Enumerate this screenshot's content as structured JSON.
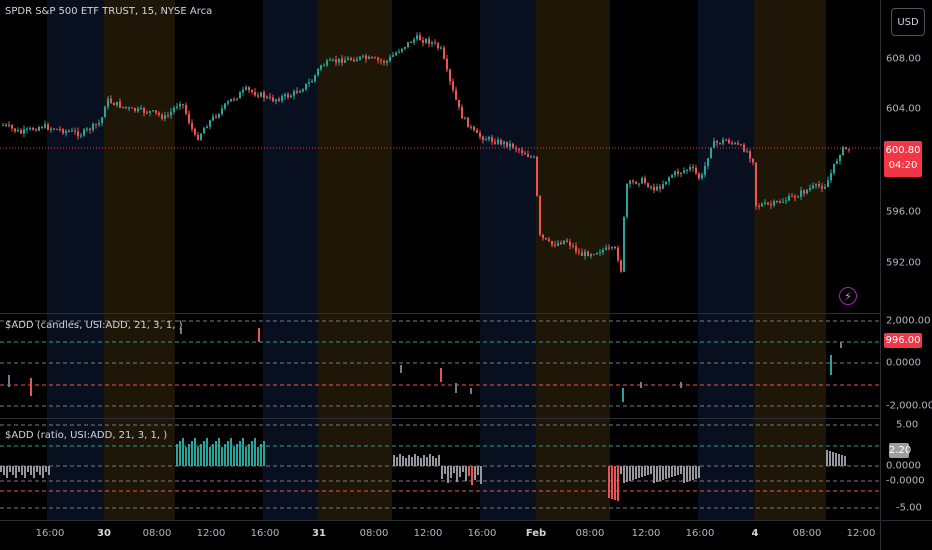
{
  "main_pane": {
    "title": "SPDR S&P 500 ETF TRUST, 15, NYSE Arca",
    "price_labels": [
      "608.00",
      "604.00",
      "596.00",
      "592.00"
    ],
    "last_price": "600.80",
    "countdown": "04:20"
  },
  "currency_button": "USD",
  "alert_icon": "lightning-bolt-icon",
  "add_candles_pane": {
    "title": "$ADD (candles, USI:ADD, 21, 3, 1, )",
    "axis_labels": [
      "2,000.00",
      "0.0000",
      "-2,000.00"
    ],
    "value_tag": "996.00"
  },
  "add_ratio_pane": {
    "title": "$ADD (ratio, USI:ADD, 21, 3, 1, )",
    "axis_labels": [
      "5.00",
      "0.0000",
      "-0.0000",
      "-5.00"
    ],
    "value_tag": "2.20"
  },
  "time_axis": [
    "16:00",
    "30",
    "08:00",
    "12:00",
    "16:00",
    "31",
    "08:00",
    "12:00",
    "16:00",
    "Feb",
    "08:00",
    "12:00",
    "16:00",
    "4",
    "08:00",
    "12:00"
  ],
  "colors": {
    "up": "#26a69a",
    "down": "#ef5350",
    "premarket_band": "#1e1707",
    "session_band": "#08101f",
    "background": "#000000"
  }
}
